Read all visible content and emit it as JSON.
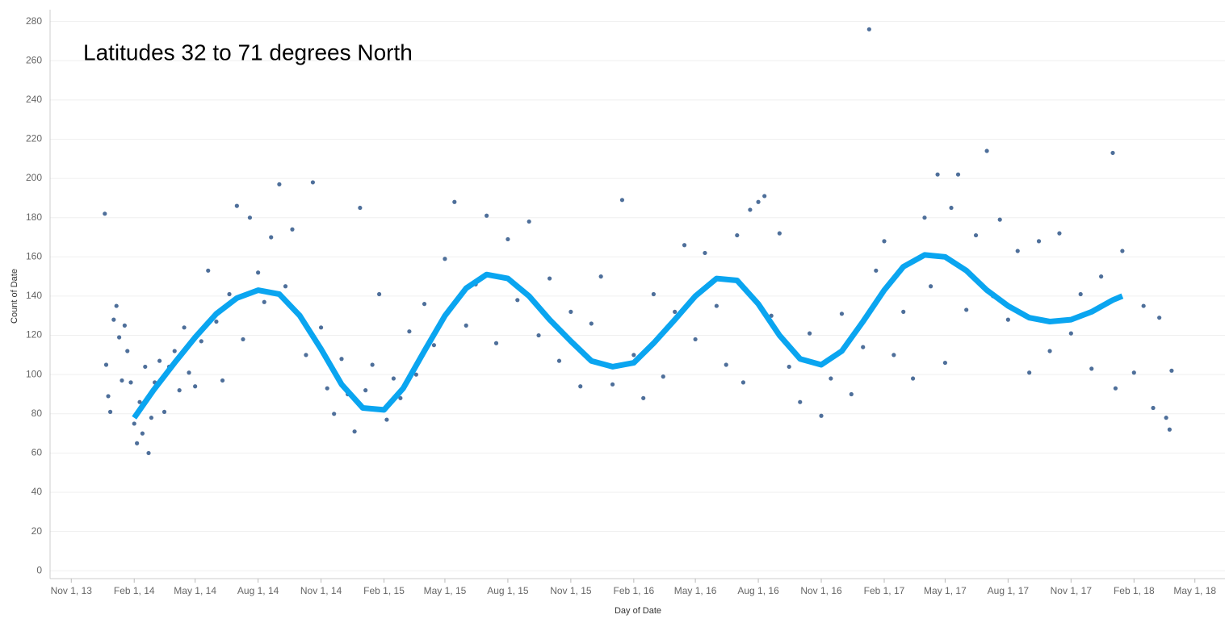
{
  "chart_data": {
    "type": "scatter",
    "title": "Latitudes 32 to 71 degrees North",
    "x_label": "Day of Date",
    "y_label": "Count of Date",
    "xlim": [
      "2013-10-01",
      "2018-06-14"
    ],
    "ylim": [
      -4,
      286
    ],
    "grid": true,
    "xticks": [
      {
        "value": "2013-11-01",
        "label": "Nov 1, 13"
      },
      {
        "value": "2014-02-01",
        "label": "Feb 1, 14"
      },
      {
        "value": "2014-05-01",
        "label": "May 1, 14"
      },
      {
        "value": "2014-08-01",
        "label": "Aug 1, 14"
      },
      {
        "value": "2014-11-01",
        "label": "Nov 1, 14"
      },
      {
        "value": "2015-02-01",
        "label": "Feb 1, 15"
      },
      {
        "value": "2015-05-01",
        "label": "May 1, 15"
      },
      {
        "value": "2015-08-01",
        "label": "Aug 1, 15"
      },
      {
        "value": "2015-11-01",
        "label": "Nov 1, 15"
      },
      {
        "value": "2016-02-01",
        "label": "Feb 1, 16"
      },
      {
        "value": "2016-05-01",
        "label": "May 1, 16"
      },
      {
        "value": "2016-08-01",
        "label": "Aug 1, 16"
      },
      {
        "value": "2016-11-01",
        "label": "Nov 1, 16"
      },
      {
        "value": "2017-02-01",
        "label": "Feb 1, 17"
      },
      {
        "value": "2017-05-01",
        "label": "May 1, 17"
      },
      {
        "value": "2017-08-01",
        "label": "Aug 1, 17"
      },
      {
        "value": "2017-11-01",
        "label": "Nov 1, 17"
      },
      {
        "value": "2018-02-01",
        "label": "Feb 1, 18"
      },
      {
        "value": "2018-05-01",
        "label": "May 1, 18"
      }
    ],
    "yticks": [
      0,
      20,
      40,
      60,
      80,
      100,
      120,
      140,
      160,
      180,
      200,
      220,
      240,
      260,
      280
    ],
    "series": [
      {
        "color": "#4e6f9a",
        "x": [
          "2013-12-20",
          "2013-12-22",
          "2013-12-25",
          "2013-12-28",
          "2014-01-02",
          "2014-01-06",
          "2014-01-10",
          "2014-01-14",
          "2014-01-18",
          "2014-01-22",
          "2014-01-27",
          "2014-02-01",
          "2014-02-05",
          "2014-02-09",
          "2014-02-13",
          "2014-02-17",
          "2014-02-22",
          "2014-02-26",
          "2014-03-03",
          "2014-03-10",
          "2014-03-17",
          "2014-03-24",
          "2014-04-01",
          "2014-04-08",
          "2014-04-15",
          "2014-04-22",
          "2014-05-01",
          "2014-05-10",
          "2014-05-20",
          "2014-06-01",
          "2014-06-10",
          "2014-06-20",
          "2014-07-01",
          "2014-07-10",
          "2014-07-20",
          "2014-08-01",
          "2014-08-10",
          "2014-08-20",
          "2014-09-01",
          "2014-09-10",
          "2014-09-20",
          "2014-10-01",
          "2014-10-10",
          "2014-10-20",
          "2014-11-01",
          "2014-11-10",
          "2014-11-20",
          "2014-12-01",
          "2014-12-10",
          "2014-12-20",
          "2014-12-28",
          "2015-01-05",
          "2015-01-15",
          "2015-01-25",
          "2015-02-05",
          "2015-02-15",
          "2015-02-25",
          "2015-03-10",
          "2015-03-20",
          "2015-04-01",
          "2015-04-15",
          "2015-05-01",
          "2015-05-15",
          "2015-06-01",
          "2015-06-15",
          "2015-07-01",
          "2015-07-15",
          "2015-08-01",
          "2015-08-15",
          "2015-09-01",
          "2015-09-15",
          "2015-10-01",
          "2015-10-15",
          "2015-11-01",
          "2015-11-15",
          "2015-12-01",
          "2015-12-15",
          "2016-01-01",
          "2016-01-15",
          "2016-02-01",
          "2016-02-15",
          "2016-03-01",
          "2016-03-15",
          "2016-04-01",
          "2016-04-15",
          "2016-05-01",
          "2016-05-15",
          "2016-06-01",
          "2016-06-15",
          "2016-07-01",
          "2016-07-10",
          "2016-07-20",
          "2016-08-01",
          "2016-08-10",
          "2016-08-20",
          "2016-09-01",
          "2016-09-15",
          "2016-10-01",
          "2016-10-15",
          "2016-11-01",
          "2016-11-15",
          "2016-12-01",
          "2016-12-15",
          "2017-01-01",
          "2017-01-10",
          "2017-01-20",
          "2017-02-01",
          "2017-02-15",
          "2017-03-01",
          "2017-03-15",
          "2017-04-01",
          "2017-04-10",
          "2017-04-20",
          "2017-05-01",
          "2017-05-10",
          "2017-05-20",
          "2017-06-01",
          "2017-06-15",
          "2017-07-01",
          "2017-07-10",
          "2017-07-20",
          "2017-08-01",
          "2017-08-15",
          "2017-09-01",
          "2017-09-15",
          "2017-10-01",
          "2017-10-15",
          "2017-11-01",
          "2017-11-15",
          "2017-12-01",
          "2017-12-15",
          "2018-01-01",
          "2018-01-05",
          "2018-01-15",
          "2018-02-01",
          "2018-02-15",
          "2018-03-01",
          "2018-03-10",
          "2018-03-20",
          "2018-03-25",
          "2018-03-28"
        ],
        "values": [
          182,
          105,
          89,
          81,
          128,
          135,
          119,
          97,
          125,
          112,
          96,
          75,
          65,
          86,
          70,
          104,
          60,
          78,
          96,
          107,
          81,
          104,
          112,
          92,
          124,
          101,
          94,
          117,
          153,
          127,
          97,
          141,
          186,
          118,
          180,
          152,
          137,
          170,
          197,
          145,
          174,
          130,
          110,
          198,
          124,
          93,
          80,
          108,
          90,
          71,
          185,
          92,
          105,
          141,
          77,
          98,
          88,
          122,
          100,
          136,
          115,
          159,
          188,
          125,
          146,
          181,
          116,
          169,
          138,
          178,
          120,
          149,
          107,
          132,
          94,
          126,
          150,
          95,
          189,
          110,
          88,
          141,
          99,
          132,
          166,
          118,
          162,
          135,
          105,
          171,
          96,
          184,
          188,
          191,
          130,
          172,
          104,
          86,
          121,
          79,
          98,
          131,
          90,
          114,
          276,
          153,
          168,
          110,
          132,
          98,
          180,
          145,
          202,
          106,
          185,
          202,
          133,
          171,
          214,
          140,
          179,
          128,
          163,
          101,
          168,
          112,
          172,
          121,
          141,
          103,
          150,
          213,
          93,
          163,
          101,
          135,
          83,
          129,
          78,
          72,
          102
        ]
      }
    ],
    "trend": {
      "color": "#0aa5f0",
      "x": [
        "2014-02-01",
        "2014-03-01",
        "2014-04-01",
        "2014-05-01",
        "2014-06-01",
        "2014-07-01",
        "2014-08-01",
        "2014-09-01",
        "2014-10-01",
        "2014-11-01",
        "2014-12-01",
        "2015-01-01",
        "2015-02-01",
        "2015-03-01",
        "2015-04-01",
        "2015-05-01",
        "2015-06-01",
        "2015-07-01",
        "2015-08-01",
        "2015-09-01",
        "2015-10-01",
        "2015-11-01",
        "2015-12-01",
        "2016-01-01",
        "2016-02-01",
        "2016-03-01",
        "2016-04-01",
        "2016-05-01",
        "2016-06-01",
        "2016-07-01",
        "2016-08-01",
        "2016-09-01",
        "2016-10-01",
        "2016-11-01",
        "2016-12-01",
        "2017-01-01",
        "2017-02-01",
        "2017-03-01",
        "2017-04-01",
        "2017-05-01",
        "2017-06-01",
        "2017-07-01",
        "2017-08-01",
        "2017-09-01",
        "2017-10-01",
        "2017-11-01",
        "2017-12-01",
        "2018-01-01",
        "2018-01-15"
      ],
      "values": [
        78,
        92,
        106,
        119,
        131,
        139,
        143,
        141,
        130,
        113,
        95,
        83,
        82,
        93,
        112,
        130,
        144,
        151,
        149,
        140,
        128,
        117,
        107,
        104,
        106,
        116,
        128,
        140,
        149,
        148,
        136,
        120,
        108,
        105,
        112,
        127,
        143,
        155,
        161,
        160,
        153,
        143,
        135,
        129,
        127,
        128,
        132,
        138,
        140
      ]
    }
  }
}
